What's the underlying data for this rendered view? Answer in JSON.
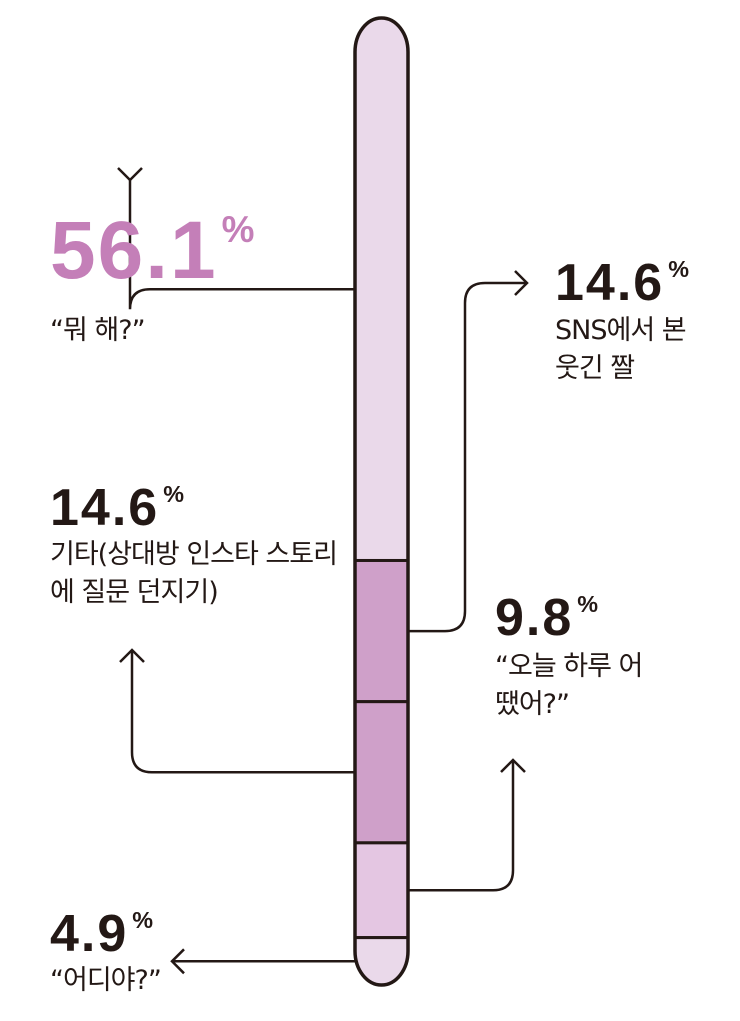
{
  "chart_data": {
    "type": "stacked-bar",
    "categories": [
      "“뭐 해?”",
      "SNS에서 본 웃긴 짤",
      "기타(상대방 인스타 스토리에 질문 던지기)",
      "“오늘 하루 어땠어?”",
      "“어디야?”"
    ],
    "values": [
      56.1,
      14.6,
      14.6,
      9.8,
      4.9
    ],
    "value_labels": [
      "56.1%",
      "14.6%",
      "14.6%",
      "9.8%",
      "4.9%"
    ],
    "colors": [
      "#ead9ea",
      "#cfa0c9",
      "#cfa0c9",
      "#e4c6e2",
      "#ead9ea"
    ],
    "ylim": [
      0,
      100
    ]
  }
}
